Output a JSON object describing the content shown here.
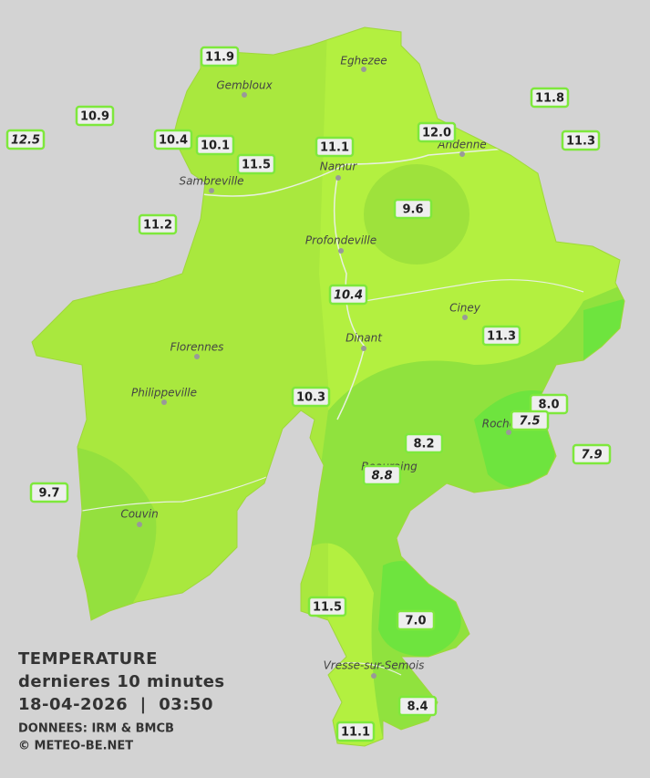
{
  "title": {
    "line1": "TEMPERATURE",
    "line2": "dernieres 10 minutes",
    "line3": "18-04-2026  |  03:50",
    "source": "DONNEES: IRM & BMCB",
    "copyright": "© METEO-BE.NET"
  },
  "towns": [
    "Eghezee",
    "Gembloux",
    "Andenne",
    "Namur",
    "Sambreville",
    "Profondeville",
    "Ciney",
    "Dinant",
    "Florennes",
    "Philippeville",
    "Rochefort",
    "Beauraing",
    "Couvin",
    "Vresse-sur-Semois"
  ],
  "stations": [
    {
      "value": "11.9",
      "italic": false
    },
    {
      "value": "10.9",
      "italic": false
    },
    {
      "value": "12.5",
      "italic": true
    },
    {
      "value": "10.4",
      "italic": false
    },
    {
      "value": "10.1",
      "italic": false
    },
    {
      "value": "11.5",
      "italic": false
    },
    {
      "value": "11.1",
      "italic": false
    },
    {
      "value": "12.0",
      "italic": false
    },
    {
      "value": "11.8",
      "italic": false
    },
    {
      "value": "11.3",
      "italic": false
    },
    {
      "value": "9.6",
      "italic": false
    },
    {
      "value": "11.2",
      "italic": false
    },
    {
      "value": "10.4",
      "italic": true
    },
    {
      "value": "11.3",
      "italic": false
    },
    {
      "value": "10.3",
      "italic": false
    },
    {
      "value": "8.0",
      "italic": false
    },
    {
      "value": "7.5",
      "italic": true
    },
    {
      "value": "8.2",
      "italic": false
    },
    {
      "value": "7.9",
      "italic": true
    },
    {
      "value": "8.8",
      "italic": true
    },
    {
      "value": "9.7",
      "italic": false
    },
    {
      "value": "11.5",
      "italic": false
    },
    {
      "value": "7.0",
      "italic": false
    },
    {
      "value": "8.4",
      "italic": false
    },
    {
      "value": "11.1",
      "italic": false
    }
  ]
}
